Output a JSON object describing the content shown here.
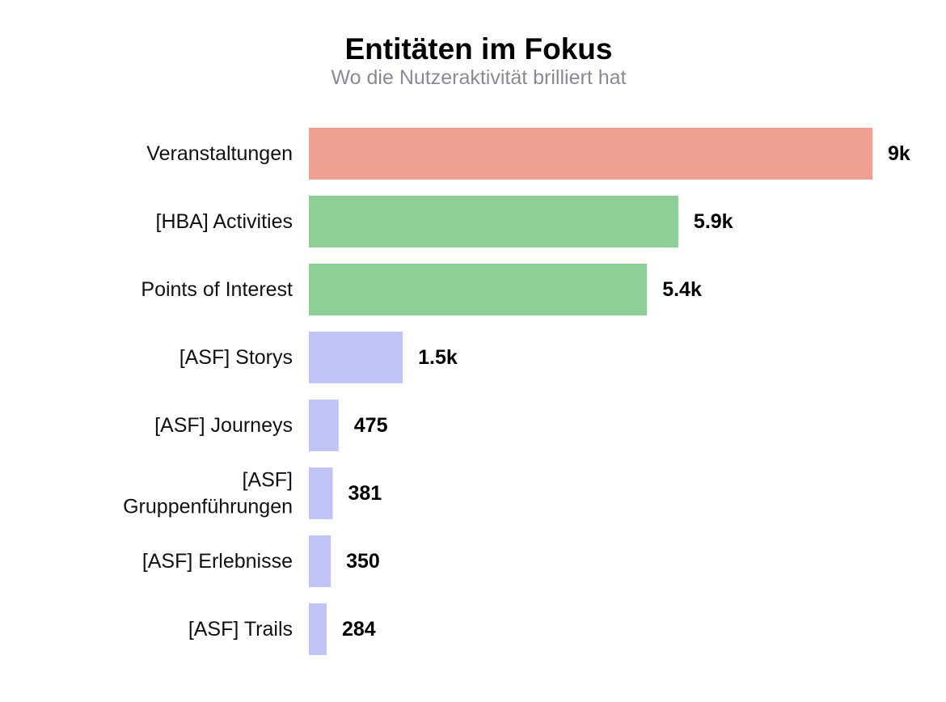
{
  "header": {
    "title": "Entitäten im Fokus",
    "subtitle": "Wo die Nutzeraktivität brilliert hat"
  },
  "chart_data": {
    "type": "bar",
    "orientation": "horizontal",
    "title": "Entitäten im Fokus",
    "subtitle": "Wo die Nutzeraktivität brilliert hat",
    "xlabel": "",
    "ylabel": "",
    "grid": false,
    "legend": "none",
    "categories": [
      "Veranstaltungen",
      "[HBA] Activities",
      "Points of Interest",
      "[ASF] Storys",
      "[ASF] Journeys",
      "[ASF] Gruppenführungen",
      "[ASF] Erlebnisse",
      "[ASF] Trails"
    ],
    "category_lines": [
      [
        "Veranstaltungen"
      ],
      [
        "[HBA] Activities"
      ],
      [
        "Points of Interest"
      ],
      [
        "[ASF] Storys"
      ],
      [
        "[ASF] Journeys"
      ],
      [
        "[ASF]",
        "Gruppenführungen"
      ],
      [
        "[ASF] Erlebnisse"
      ],
      [
        "[ASF] Trails"
      ]
    ],
    "values": [
      9000,
      5900,
      5400,
      1500,
      475,
      381,
      350,
      284
    ],
    "value_labels": [
      "9k",
      "5.9k",
      "5.4k",
      "1.5k",
      "475",
      "381",
      "350",
      "284"
    ],
    "bar_colors": [
      "#f0a093",
      "#8dcf96",
      "#8dcf96",
      "#c0c4f7",
      "#c0c4f7",
      "#c0c4f7",
      "#c0c4f7",
      "#c0c4f7"
    ],
    "xlim": [
      0,
      9000
    ]
  }
}
